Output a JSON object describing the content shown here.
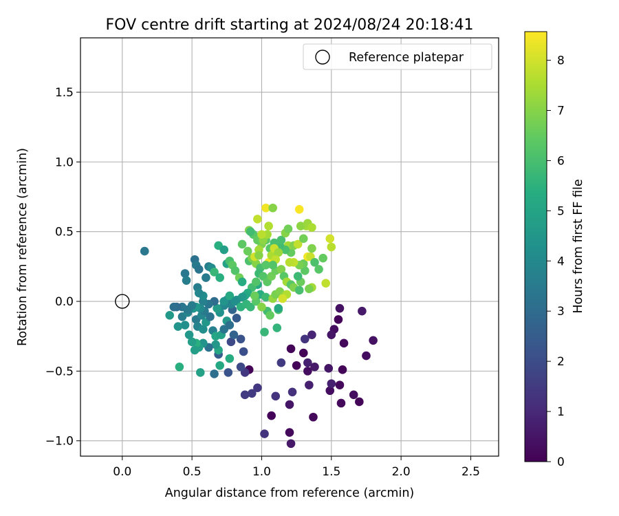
{
  "chart_data": {
    "type": "scatter",
    "title": "FOV centre drift starting at 2024/08/24 20:18:41",
    "xlabel": "Angular distance from reference (arcmin)",
    "ylabel": "Rotation from reference (arcmin)",
    "xlim": [
      -0.3,
      2.7
    ],
    "ylim": [
      -1.11,
      1.89
    ],
    "xticks": [
      "0.0",
      "0.5",
      "1.0",
      "1.5",
      "2.0",
      "2.5"
    ],
    "xtick_values": [
      0.0,
      0.5,
      1.0,
      1.5,
      2.0,
      2.5
    ],
    "yticks": [
      "−1.0",
      "−0.5",
      "0.0",
      "0.5",
      "1.0",
      "1.5"
    ],
    "ytick_values": [
      -1.0,
      -0.5,
      0.0,
      0.5,
      1.0,
      1.5
    ],
    "grid": true,
    "legend": {
      "placement": "top-right",
      "entries": [
        "Reference platepar"
      ]
    },
    "reference_point": {
      "x": 0.0,
      "y": 0.0
    },
    "colorbar": {
      "label": "Hours from first FF file",
      "range": [
        0,
        8.57
      ],
      "ticks": [
        "0",
        "1",
        "2",
        "3",
        "4",
        "5",
        "6",
        "7",
        "8"
      ],
      "tick_values": [
        0,
        1,
        2,
        3,
        4,
        5,
        6,
        7,
        8
      ],
      "colormap": "viridis"
    },
    "points": [
      [
        1.07,
        -0.82,
        0.1
      ],
      [
        1.37,
        -0.83,
        0.2
      ],
      [
        1.21,
        -1.02,
        0.6
      ],
      [
        1.2,
        -0.94,
        0.2
      ],
      [
        1.02,
        -0.95,
        1.3
      ],
      [
        1.2,
        -0.74,
        0.5
      ],
      [
        1.57,
        -0.73,
        0.2
      ],
      [
        1.7,
        -0.72,
        0.1
      ],
      [
        1.66,
        -0.67,
        0.3
      ],
      [
        1.49,
        -0.64,
        0.3
      ],
      [
        1.56,
        -0.6,
        0.2
      ],
      [
        1.5,
        -0.59,
        0.8
      ],
      [
        1.34,
        -0.6,
        0.8
      ],
      [
        1.22,
        -0.65,
        1.2
      ],
      [
        1.1,
        -0.68,
        1.3
      ],
      [
        0.97,
        -0.62,
        1.4
      ],
      [
        0.93,
        -0.66,
        1.5
      ],
      [
        0.88,
        -0.67,
        1.5
      ],
      [
        1.58,
        -0.49,
        0.1
      ],
      [
        1.48,
        -0.48,
        0.5
      ],
      [
        1.33,
        -0.5,
        0.3
      ],
      [
        1.33,
        -0.44,
        0.8
      ],
      [
        1.38,
        -0.47,
        0.6
      ],
      [
        1.25,
        -0.46,
        0.1
      ],
      [
        1.14,
        -0.44,
        1.5
      ],
      [
        1.3,
        -0.37,
        0.1
      ],
      [
        1.75,
        -0.39,
        0.3
      ],
      [
        1.8,
        -0.28,
        0.4
      ],
      [
        1.59,
        -0.3,
        0.2
      ],
      [
        1.52,
        -0.2,
        0.3
      ],
      [
        1.55,
        -0.13,
        0.1
      ],
      [
        1.56,
        -0.05,
        0.4
      ],
      [
        1.5,
        -0.24,
        0.5
      ],
      [
        1.72,
        -0.07,
        0.6
      ],
      [
        1.36,
        -0.24,
        0.9
      ],
      [
        1.31,
        -0.27,
        1.3
      ],
      [
        1.21,
        -0.34,
        0.1
      ],
      [
        0.91,
        -0.49,
        0.1
      ],
      [
        0.88,
        -0.51,
        1.4
      ],
      [
        0.85,
        -0.47,
        1.9
      ],
      [
        0.87,
        -0.36,
        2.1
      ],
      [
        0.85,
        -0.27,
        2.2
      ],
      [
        0.78,
        -0.29,
        1.9
      ],
      [
        0.77,
        -0.41,
        5.3
      ],
      [
        0.76,
        -0.51,
        2.2
      ],
      [
        0.66,
        -0.52,
        3.1
      ],
      [
        0.56,
        -0.51,
        4.9
      ],
      [
        0.41,
        -0.47,
        5.4
      ],
      [
        0.7,
        -0.46,
        5.2
      ],
      [
        0.69,
        -0.38,
        2.5
      ],
      [
        0.69,
        -0.35,
        5.1
      ],
      [
        0.67,
        -0.31,
        4.5
      ],
      [
        0.62,
        -0.33,
        3.2
      ],
      [
        0.58,
        -0.3,
        4.4
      ],
      [
        0.55,
        -0.33,
        4.8
      ],
      [
        0.53,
        -0.3,
        5.4
      ],
      [
        0.52,
        -0.35,
        4.8
      ],
      [
        0.5,
        -0.29,
        4.8
      ],
      [
        0.48,
        -0.24,
        4.5
      ],
      [
        0.45,
        -0.17,
        4.2
      ],
      [
        0.4,
        -0.18,
        4.4
      ],
      [
        0.43,
        -0.11,
        3.6
      ],
      [
        0.47,
        -0.08,
        3.9
      ],
      [
        0.51,
        -0.05,
        4.3
      ],
      [
        0.53,
        -0.13,
        3.5
      ],
      [
        0.54,
        -0.18,
        3.8
      ],
      [
        0.58,
        -0.2,
        4.2
      ],
      [
        0.6,
        -0.15,
        4.5
      ],
      [
        0.57,
        -0.1,
        3.9
      ],
      [
        0.59,
        -0.07,
        3.5
      ],
      [
        0.63,
        -0.11,
        3.3
      ],
      [
        0.65,
        -0.21,
        3.7
      ],
      [
        0.67,
        -0.25,
        5.1
      ],
      [
        0.71,
        -0.24,
        4.9
      ],
      [
        0.73,
        -0.2,
        3.3
      ],
      [
        0.75,
        -0.14,
        4.6
      ],
      [
        0.77,
        -0.17,
        3.1
      ],
      [
        0.8,
        -0.24,
        2.7
      ],
      [
        0.82,
        -0.12,
        2.4
      ],
      [
        0.79,
        -0.06,
        2.8
      ],
      [
        0.73,
        -0.03,
        3.9
      ],
      [
        0.7,
        -0.08,
        4.3
      ],
      [
        0.68,
        -0.05,
        4.7
      ],
      [
        0.66,
        0.0,
        3.0
      ],
      [
        0.62,
        -0.02,
        3.3
      ],
      [
        0.58,
        0.0,
        3.7
      ],
      [
        0.56,
        -0.05,
        4.0
      ],
      [
        0.53,
        -0.04,
        4.5
      ],
      [
        0.5,
        -0.03,
        3.6
      ],
      [
        0.47,
        -0.06,
        3.5
      ],
      [
        0.43,
        -0.04,
        3.4
      ],
      [
        0.39,
        -0.04,
        3.0
      ],
      [
        0.37,
        -0.04,
        3.1
      ],
      [
        0.34,
        -0.1,
        4.6
      ],
      [
        0.16,
        0.36,
        3.4
      ],
      [
        0.45,
        0.2,
        3.4
      ],
      [
        0.46,
        0.15,
        3.6
      ],
      [
        0.52,
        0.3,
        3.2
      ],
      [
        0.53,
        0.26,
        3.5
      ],
      [
        0.55,
        0.23,
        3.3
      ],
      [
        0.54,
        0.1,
        3.6
      ],
      [
        0.58,
        0.04,
        4.1
      ],
      [
        0.55,
        0.06,
        3.9
      ],
      [
        0.6,
        0.17,
        3.5
      ],
      [
        0.62,
        0.25,
        3.6
      ],
      [
        0.64,
        0.24,
        4.1
      ],
      [
        0.66,
        0.21,
        5.7
      ],
      [
        0.7,
        0.17,
        5.4
      ],
      [
        0.69,
        0.4,
        5.4
      ],
      [
        0.73,
        0.37,
        4.8
      ],
      [
        0.75,
        0.27,
        4.9
      ],
      [
        0.77,
        0.29,
        6.0
      ],
      [
        0.79,
        0.26,
        6.4
      ],
      [
        0.81,
        0.22,
        6.2
      ],
      [
        0.84,
        0.17,
        6.7
      ],
      [
        0.86,
        0.14,
        5.3
      ],
      [
        0.86,
        0.41,
        6.4
      ],
      [
        0.9,
        0.36,
        6.6
      ],
      [
        0.91,
        0.29,
        6.1
      ],
      [
        0.93,
        0.31,
        6.8
      ],
      [
        0.96,
        0.27,
        7.0
      ],
      [
        0.99,
        0.24,
        6.0
      ],
      [
        0.98,
        0.2,
        5.8
      ],
      [
        1.01,
        0.18,
        6.2
      ],
      [
        0.97,
        0.12,
        5.2
      ],
      [
        0.93,
        0.1,
        5.9
      ],
      [
        0.9,
        0.06,
        5.3
      ],
      [
        0.88,
        0.04,
        5.1
      ],
      [
        0.86,
        0.03,
        4.6
      ],
      [
        0.82,
        0.01,
        4.4
      ],
      [
        0.78,
        -0.02,
        3.9
      ],
      [
        0.75,
        0.01,
        3.8
      ],
      [
        0.73,
        0.0,
        4.4
      ],
      [
        0.77,
        0.04,
        5.2
      ],
      [
        0.81,
        0.0,
        4.2
      ],
      [
        0.85,
        -0.04,
        5.5
      ],
      [
        0.89,
        -0.02,
        5.6
      ],
      [
        0.92,
        -0.04,
        5.7
      ],
      [
        0.96,
        0.0,
        6.3
      ],
      [
        0.99,
        0.05,
        5.4
      ],
      [
        1.03,
        0.03,
        5.8
      ],
      [
        1.04,
        -0.07,
        5.9
      ],
      [
        1.06,
        -0.1,
        6.5
      ],
      [
        1.08,
        0.02,
        7.2
      ],
      [
        1.1,
        0.05,
        6.8
      ],
      [
        1.13,
        0.07,
        6.9
      ],
      [
        1.16,
        0.04,
        7.1
      ],
      [
        1.18,
        0.05,
        7.6
      ],
      [
        1.15,
        0.02,
        8.0
      ],
      [
        1.12,
        -0.06,
        6.1
      ],
      [
        1.11,
        -0.19,
        5.6
      ],
      [
        1.02,
        -0.22,
        5.7
      ],
      [
        1.0,
        -0.04,
        7.0
      ],
      [
        0.95,
        0.04,
        6.6
      ],
      [
        0.96,
        0.14,
        6.2
      ],
      [
        1.04,
        0.14,
        6.4
      ],
      [
        1.07,
        0.18,
        6.7
      ],
      [
        1.1,
        0.22,
        6.6
      ],
      [
        1.14,
        0.23,
        6.9
      ],
      [
        1.16,
        0.18,
        6.3
      ],
      [
        1.18,
        0.14,
        7.4
      ],
      [
        1.21,
        0.12,
        6.3
      ],
      [
        1.23,
        0.1,
        6.9
      ],
      [
        1.27,
        0.08,
        6.0
      ],
      [
        1.28,
        0.14,
        6.6
      ],
      [
        1.26,
        0.18,
        5.8
      ],
      [
        1.31,
        0.22,
        6.4
      ],
      [
        1.3,
        0.27,
        6.6
      ],
      [
        1.27,
        0.26,
        6.8
      ],
      [
        1.23,
        0.28,
        7.8
      ],
      [
        1.21,
        0.35,
        6.5
      ],
      [
        1.19,
        0.4,
        7.4
      ],
      [
        1.17,
        0.37,
        6.1
      ],
      [
        1.13,
        0.4,
        5.9
      ],
      [
        1.09,
        0.42,
        6.0
      ],
      [
        1.06,
        0.38,
        6.3
      ],
      [
        1.03,
        0.44,
        6.4
      ],
      [
        1.0,
        0.41,
        6.9
      ],
      [
        0.98,
        0.37,
        7.4
      ],
      [
        0.95,
        0.32,
        8.0
      ],
      [
        0.94,
        0.48,
        6.3
      ],
      [
        0.91,
        0.51,
        6.9
      ],
      [
        0.92,
        0.5,
        5.9
      ],
      [
        0.97,
        0.44,
        6.5
      ],
      [
        1.01,
        0.44,
        7.1
      ],
      [
        1.04,
        0.48,
        7.4
      ],
      [
        1.05,
        0.28,
        8.4
      ],
      [
        1.07,
        0.33,
        7.5
      ],
      [
        1.09,
        0.38,
        7.9
      ],
      [
        1.12,
        0.35,
        7.3
      ],
      [
        1.14,
        0.44,
        6.0
      ],
      [
        1.17,
        0.49,
        7.0
      ],
      [
        1.19,
        0.52,
        6.7
      ],
      [
        1.2,
        0.28,
        7.7
      ],
      [
        1.23,
        0.4,
        6.9
      ],
      [
        1.26,
        0.41,
        7.8
      ],
      [
        1.3,
        0.45,
        6.7
      ],
      [
        1.33,
        0.32,
        8.4
      ],
      [
        1.35,
        0.32,
        7.9
      ],
      [
        1.36,
        0.38,
        6.9
      ],
      [
        1.38,
        0.28,
        6.1
      ],
      [
        1.41,
        0.23,
        6.3
      ],
      [
        1.44,
        0.31,
        6.5
      ],
      [
        1.46,
        0.13,
        7.8
      ],
      [
        1.49,
        0.45,
        8.0
      ],
      [
        1.5,
        0.39,
        7.7
      ],
      [
        1.36,
        0.1,
        7.4
      ],
      [
        1.34,
        0.09,
        6.8
      ],
      [
        1.32,
        0.54,
        7.4
      ],
      [
        1.28,
        0.54,
        7.1
      ],
      [
        1.27,
        0.66,
        8.5
      ],
      [
        1.33,
        0.56,
        7.3
      ],
      [
        1.36,
        0.53,
        7.5
      ],
      [
        1.03,
        0.67,
        8.4
      ],
      [
        1.08,
        0.67,
        7.0
      ],
      [
        1.05,
        0.54,
        7.6
      ],
      [
        0.97,
        0.59,
        7.8
      ],
      [
        1.0,
        0.48,
        7.7
      ],
      [
        1.1,
        0.3,
        7.8
      ],
      [
        1.08,
        0.26,
        6.2
      ],
      [
        1.03,
        0.26,
        6.3
      ],
      [
        0.98,
        0.33,
        7.0
      ],
      [
        1.12,
        -0.05,
        5.2
      ]
    ]
  }
}
